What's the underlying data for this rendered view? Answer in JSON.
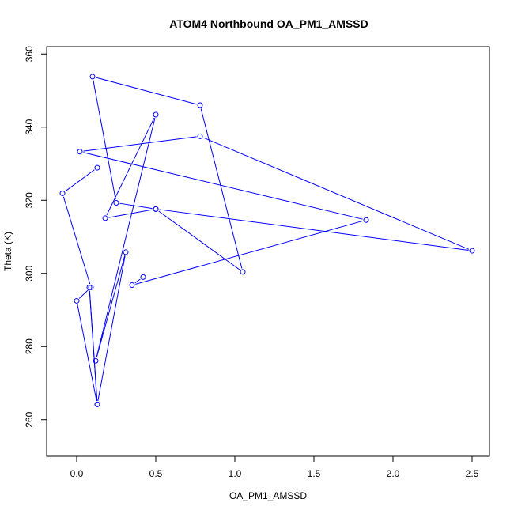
{
  "chart_data": {
    "type": "line",
    "title": "ATOM4 Northbound OA_PM1_AMSSD",
    "xlabel": "OA_PM1_AMSSD",
    "ylabel": "Theta (K)",
    "xlim": [
      -0.19,
      2.61
    ],
    "ylim": [
      250,
      362
    ],
    "x_ticks": [
      0.0,
      0.5,
      1.0,
      1.5,
      2.0,
      2.5
    ],
    "x_tick_labels": [
      "0.0",
      "0.5",
      "1.0",
      "1.5",
      "2.0",
      "2.5"
    ],
    "y_ticks": [
      260,
      280,
      300,
      320,
      340,
      360
    ],
    "y_tick_labels": [
      "260",
      "280",
      "300",
      "320",
      "340",
      "360"
    ],
    "grid": false,
    "series": [
      {
        "color": "#0000ff",
        "marker": "open-circle",
        "x": [
          0.42,
          0.35,
          1.83,
          0.02,
          0.78,
          2.5,
          0.5,
          0.25,
          0.1,
          0.78,
          1.05,
          0.5,
          0.18,
          0.5,
          0.12,
          0.31,
          0.13,
          0.08,
          0.13,
          0.0,
          0.09,
          -0.09,
          0.13
        ],
        "y": [
          299.0,
          296.8,
          314.6,
          333.3,
          337.5,
          306.2,
          317.6,
          319.3,
          353.8,
          346.0,
          300.4,
          317.6,
          315.1,
          343.4,
          276.1,
          305.8,
          264.2,
          296.2,
          264.2,
          292.5,
          296.2,
          321.9,
          328.9
        ]
      }
    ]
  }
}
